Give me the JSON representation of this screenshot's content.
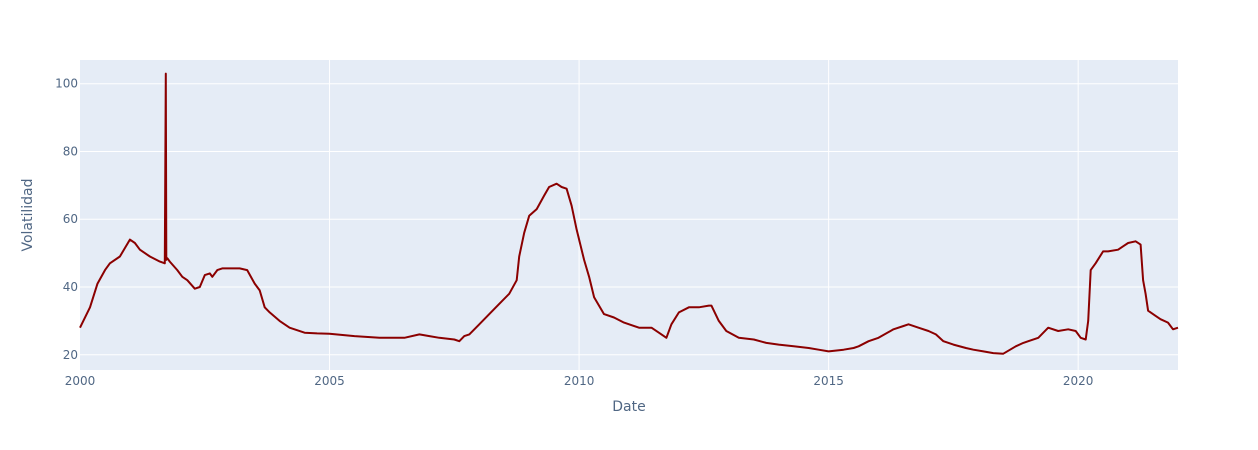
{
  "chart_data": {
    "type": "line",
    "xlabel": "Date",
    "ylabel": "Volatilidad",
    "xlim": [
      2000,
      2022
    ],
    "ylim": [
      15.5,
      107
    ],
    "x_ticks": [
      "2000",
      "2005",
      "2010",
      "2015",
      "2020"
    ],
    "y_ticks": [
      "20",
      "40",
      "60",
      "80",
      "100"
    ],
    "grid": true,
    "legend": "none",
    "colors": {
      "line": "#8b0000",
      "plot_bg": "#e5ecf6",
      "grid": "#ffffff"
    },
    "series": [
      {
        "x": [
          2000.0,
          2000.2,
          2000.35,
          2000.5,
          2000.6,
          2000.8,
          2001.0,
          2001.1,
          2001.2,
          2001.4,
          2001.6,
          2001.7,
          2001.72,
          2001.73,
          2001.75,
          2001.8,
          2001.95,
          2002.05,
          2002.15,
          2002.3,
          2002.4,
          2002.5,
          2002.6,
          2002.65,
          2002.75,
          2002.85,
          2003.0,
          2003.2,
          2003.35,
          2003.5,
          2003.6,
          2003.7,
          2003.8,
          2004.0,
          2004.2,
          2004.5,
          2004.75,
          2005.0,
          2005.5,
          2006.0,
          2006.5,
          2006.8,
          2007.0,
          2007.2,
          2007.5,
          2007.6,
          2007.7,
          2007.8,
          2008.0,
          2008.2,
          2008.4,
          2008.6,
          2008.75,
          2008.8,
          2008.9,
          2009.0,
          2009.15,
          2009.3,
          2009.4,
          2009.55,
          2009.65,
          2009.75,
          2009.85,
          2009.95,
          2010.1,
          2010.2,
          2010.3,
          2010.5,
          2010.7,
          2010.9,
          2011.2,
          2011.45,
          2011.6,
          2011.75,
          2011.85,
          2012.0,
          2012.2,
          2012.4,
          2012.6,
          2012.65,
          2012.8,
          2012.95,
          2013.2,
          2013.5,
          2013.75,
          2014.0,
          2014.3,
          2014.6,
          2014.8,
          2015.0,
          2015.3,
          2015.5,
          2015.6,
          2015.8,
          2016.0,
          2016.3,
          2016.5,
          2016.6,
          2016.8,
          2017.0,
          2017.15,
          2017.3,
          2017.5,
          2017.75,
          2017.9,
          2018.1,
          2018.3,
          2018.5,
          2018.75,
          2018.9,
          2019.0,
          2019.2,
          2019.4,
          2019.6,
          2019.8,
          2019.95,
          2020.05,
          2020.15,
          2020.2,
          2020.25,
          2020.35,
          2020.5,
          2020.6,
          2020.8,
          2020.9,
          2021.0,
          2021.15,
          2021.25,
          2021.3,
          2021.35,
          2021.4,
          2021.55,
          2021.65,
          2021.8,
          2021.9,
          2022.0
        ],
        "y": [
          28,
          34,
          41,
          45,
          47,
          49,
          54,
          53,
          51,
          49,
          47.5,
          47,
          103,
          48,
          48.5,
          47.5,
          45,
          43,
          42,
          39.5,
          40,
          43.5,
          44,
          43,
          45,
          45.5,
          45.5,
          45.5,
          45,
          41,
          39,
          34,
          32.5,
          30,
          28,
          26.5,
          26.3,
          26.2,
          25.5,
          25,
          25,
          26,
          25.5,
          25,
          24.5,
          24,
          25.5,
          26,
          29,
          32,
          35,
          38,
          42,
          49,
          56,
          61,
          63,
          67,
          69.5,
          70.5,
          69.5,
          69,
          64,
          57,
          48,
          43,
          37,
          32,
          31,
          29.5,
          28,
          28,
          26.5,
          25,
          29,
          32.5,
          34,
          34,
          34.5,
          34.5,
          30,
          27,
          25,
          24.5,
          23.5,
          23,
          22.5,
          22,
          21.5,
          21,
          21.5,
          22,
          22.5,
          24,
          25,
          27.5,
          28.5,
          29,
          28,
          27,
          26,
          24,
          23,
          22,
          21.5,
          21,
          20.5,
          20.3,
          22.5,
          23.5,
          24,
          25,
          28,
          27,
          27.5,
          27,
          25,
          24.5,
          30,
          45,
          47,
          50.5,
          50.5,
          51,
          52,
          53,
          53.5,
          52.5,
          42,
          38,
          33,
          31.5,
          30.5,
          29.5,
          27.5,
          28
        ]
      }
    ]
  }
}
